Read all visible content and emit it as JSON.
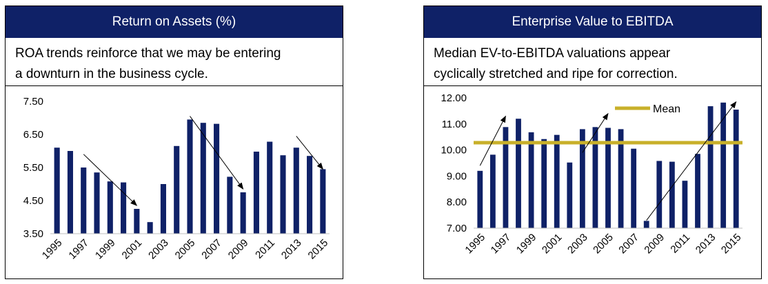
{
  "panels": [
    {
      "title": "Return on Assets (%)",
      "subtitle_line1": "ROA trends reinforce that we may be entering",
      "subtitle_line2": "a downturn in the business cycle."
    },
    {
      "title": "Enterprise Value to EBITDA",
      "subtitle_line1": "Median EV-to-EBITDA valuations appear",
      "subtitle_line2": "cyclically stretched and ripe for correction."
    }
  ],
  "chart_data": [
    {
      "type": "bar",
      "title": "Return on Assets (%)",
      "categories": [
        "1995",
        "1996",
        "1997",
        "1998",
        "1999",
        "2000",
        "2001",
        "2002",
        "2003",
        "2004",
        "2005",
        "2006",
        "2007",
        "2008",
        "2009",
        "2010",
        "2011",
        "2012",
        "2013",
        "2014",
        "2015"
      ],
      "x_tick_labels": [
        "1995",
        "1997",
        "1999",
        "2001",
        "2003",
        "2005",
        "2007",
        "2009",
        "2011",
        "2013",
        "2015"
      ],
      "values": [
        6.1,
        6.0,
        5.5,
        5.35,
        5.08,
        5.05,
        4.25,
        3.85,
        5.0,
        6.15,
        6.95,
        6.85,
        6.82,
        5.22,
        4.75,
        5.98,
        6.28,
        5.87,
        6.1,
        5.85,
        5.45
      ],
      "ylim": [
        3.5,
        7.5
      ],
      "yticks": [
        "3.50",
        "4.50",
        "5.50",
        "6.50",
        "7.50"
      ],
      "bar_color": "#0f2167",
      "annotations": [
        {
          "type": "arrow",
          "from": [
            "1997",
            5.9
          ],
          "to": [
            "2001",
            4.35
          ]
        },
        {
          "type": "arrow",
          "from": [
            "2005",
            7.05
          ],
          "to": [
            "2009",
            4.85
          ]
        },
        {
          "type": "arrow",
          "from": [
            "2013",
            6.45
          ],
          "to": [
            "2015",
            5.45
          ]
        }
      ]
    },
    {
      "type": "bar",
      "title": "Enterprise Value to EBITDA",
      "categories": [
        "1995",
        "1996",
        "1997",
        "1998",
        "1999",
        "2000",
        "2001",
        "2002",
        "2003",
        "2004",
        "2005",
        "2006",
        "2007",
        "2008",
        "2009",
        "2010",
        "2011",
        "2012",
        "2013",
        "2014",
        "2015"
      ],
      "x_tick_labels": [
        "1995",
        "1997",
        "1999",
        "2001",
        "2003",
        "2005",
        "2007",
        "2009",
        "2011",
        "2013",
        "2015"
      ],
      "values": [
        9.2,
        9.82,
        10.88,
        11.2,
        10.68,
        10.42,
        10.58,
        9.52,
        10.8,
        10.88,
        10.85,
        10.8,
        10.05,
        7.28,
        9.58,
        9.55,
        8.82,
        9.85,
        11.68,
        11.82,
        11.55
      ],
      "ylim": [
        7.0,
        12.0
      ],
      "yticks": [
        "7.00",
        "8.00",
        "9.00",
        "10.00",
        "11.00",
        "12.00"
      ],
      "bar_color": "#0f2167",
      "mean": {
        "label": "Mean",
        "value": 10.28,
        "color": "#c8b02a"
      },
      "annotations": [
        {
          "type": "arrow",
          "from": [
            "1995",
            9.4
          ],
          "to": [
            "1997",
            11.3
          ]
        },
        {
          "type": "arrow",
          "from": [
            "2003",
            9.9
          ],
          "to": [
            "2005",
            11.4
          ]
        },
        {
          "type": "arrow",
          "from": [
            "2008",
            7.3
          ],
          "to": [
            "2015",
            11.85
          ]
        }
      ]
    }
  ]
}
